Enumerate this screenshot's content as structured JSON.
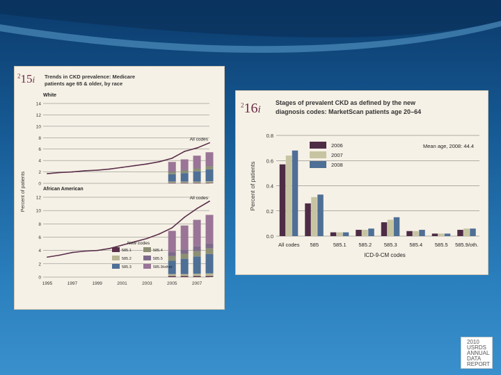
{
  "fig15": {
    "number": "15",
    "prefix": "2",
    "suffix": "i",
    "title_line1": "Trends in CKD prevalence: Medicare",
    "title_line2": "patients age 65 & older, by race",
    "ylabel": "Percent of patients",
    "panel_labels": [
      "White",
      "African American"
    ],
    "annotations": {
      "all_codes_top": "All codes",
      "all_codes_bottom": "All codes",
      "new_codes": "New codes"
    },
    "legend_items": [
      {
        "label": "585.1",
        "color": "#5a2f4a"
      },
      {
        "label": "585.4",
        "color": "#8c8f74"
      },
      {
        "label": "585.2",
        "color": "#b8b494"
      },
      {
        "label": "585.5",
        "color": "#7d6a8a"
      },
      {
        "label": "585.3",
        "color": "#4e6f96"
      },
      {
        "label": "585.9/other",
        "color": "#9a7597"
      }
    ]
  },
  "fig16": {
    "number": "16",
    "prefix": "2",
    "suffix": "i",
    "title_line1": "Stages of prevalent CKD as defined by the new",
    "title_line2": "diagnosis codes: MarketScan patients age 20–64",
    "mean_age_label": "Mean age, 2008: 44.4"
  },
  "logo": {
    "lines": [
      "2010",
      "USRDS",
      "ANNUAL",
      "DATA",
      "REPORT"
    ]
  },
  "chart_data": [
    {
      "type": "line",
      "title": "Trends in CKD prevalence: Medicare patients age 65 & older, by race",
      "ylabel": "Percent of patients",
      "x_ticks": [
        "1995",
        "1997",
        "1999",
        "2001",
        "2003",
        "2005",
        "2007"
      ],
      "panels": [
        {
          "name": "White",
          "yticks": [
            0,
            2,
            4,
            6,
            8,
            10,
            12,
            14
          ],
          "ylim": [
            0,
            14
          ],
          "line_label": "All codes",
          "x": [
            1995,
            1996,
            1997,
            1998,
            1999,
            2000,
            2001,
            2002,
            2003,
            2004,
            2005,
            2006,
            2007,
            2008
          ],
          "y": [
            1.7,
            1.9,
            2.0,
            2.2,
            2.3,
            2.5,
            2.8,
            3.1,
            3.4,
            3.8,
            4.4,
            5.6,
            6.2,
            7.1
          ],
          "stacked_bars": {
            "x": [
              2005,
              2006,
              2007,
              2008
            ],
            "series": [
              {
                "name": "585.1",
                "values": [
                  0.1,
                  0.1,
                  0.1,
                  0.1
                ]
              },
              {
                "name": "585.2",
                "values": [
                  0.2,
                  0.2,
                  0.2,
                  0.25
                ]
              },
              {
                "name": "585.3",
                "values": [
                  1.3,
                  1.5,
                  1.8,
                  2.1
                ]
              },
              {
                "name": "585.4",
                "values": [
                  0.4,
                  0.45,
                  0.5,
                  0.55
                ]
              },
              {
                "name": "585.5",
                "values": [
                  0.15,
                  0.15,
                  0.15,
                  0.15
                ]
              },
              {
                "name": "585.9/other",
                "values": [
                  1.6,
                  1.8,
                  2.1,
                  2.3
                ]
              }
            ]
          }
        },
        {
          "name": "African American",
          "yticks": [
            0,
            2,
            4,
            6,
            8,
            10,
            12
          ],
          "ylim": [
            0,
            12
          ],
          "line_label": "All codes",
          "x": [
            1995,
            1996,
            1997,
            1998,
            1999,
            2000,
            2001,
            2002,
            2003,
            2004,
            2005,
            2006,
            2007,
            2008
          ],
          "y": [
            3.0,
            3.3,
            3.7,
            3.9,
            4.0,
            4.3,
            4.8,
            5.3,
            5.8,
            6.5,
            7.4,
            9.0,
            10.3,
            11.4
          ],
          "stacked_bars": {
            "x": [
              2005,
              2006,
              2007,
              2008
            ],
            "series": [
              {
                "name": "585.1",
                "values": [
                  0.15,
                  0.15,
                  0.15,
                  0.15
                ]
              },
              {
                "name": "585.2",
                "values": [
                  0.3,
                  0.3,
                  0.35,
                  0.4
                ]
              },
              {
                "name": "585.3",
                "values": [
                  2.0,
                  2.3,
                  2.6,
                  2.9
                ]
              },
              {
                "name": "585.4",
                "values": [
                  0.7,
                  0.75,
                  0.8,
                  0.85
                ]
              },
              {
                "name": "585.5",
                "values": [
                  0.6,
                  0.65,
                  0.7,
                  0.75
                ]
              },
              {
                "name": "585.9/other",
                "values": [
                  3.2,
                  3.6,
                  4.0,
                  4.3
                ]
              }
            ]
          }
        }
      ]
    },
    {
      "type": "bar",
      "title": "Stages of prevalent CKD as defined by the new diagnosis codes: MarketScan patients age 20–64",
      "xlabel": "ICD-9-CM codes",
      "ylabel": "Percent of patients",
      "ylim": [
        0,
        0.8
      ],
      "yticks": [
        "0.0",
        "0.2",
        "0.4",
        "0.6",
        "0.8"
      ],
      "categories": [
        "All codes",
        "585",
        "585.1",
        "585.2",
        "585.3",
        "585.4",
        "585.5",
        "585.9/oth."
      ],
      "series": [
        {
          "name": "2006",
          "color": "#4e2c45",
          "values": [
            0.57,
            0.26,
            0.03,
            0.05,
            0.11,
            0.04,
            0.02,
            0.05
          ]
        },
        {
          "name": "2007",
          "color": "#c7c4a2",
          "values": [
            0.64,
            0.31,
            0.03,
            0.05,
            0.13,
            0.04,
            0.02,
            0.06
          ]
        },
        {
          "name": "2008",
          "color": "#4f6f95",
          "values": [
            0.68,
            0.33,
            0.03,
            0.06,
            0.15,
            0.05,
            0.02,
            0.06
          ]
        }
      ]
    }
  ]
}
